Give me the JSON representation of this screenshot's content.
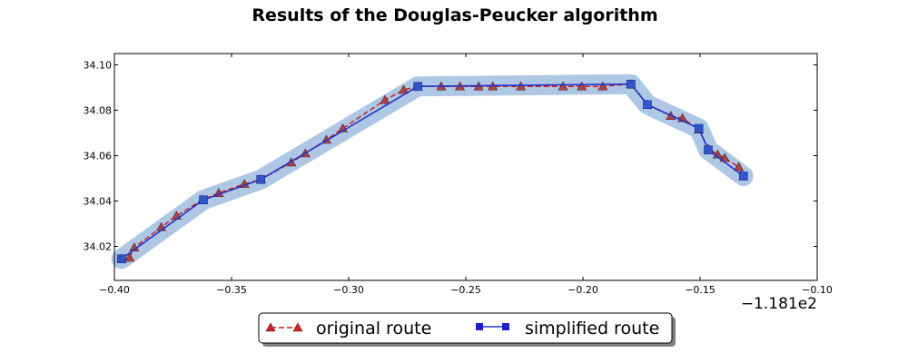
{
  "chart_data": {
    "type": "line",
    "title": "Results of the Douglas-Peucker algorithm",
    "xlabel": "",
    "ylabel": "",
    "x_offset_label": "−1.181e2",
    "xlim": [
      -0.4,
      -0.1
    ],
    "ylim": [
      34.005,
      34.105
    ],
    "x_ticks": [
      -0.4,
      -0.35,
      -0.3,
      -0.25,
      -0.2,
      -0.15,
      -0.1
    ],
    "x_tick_labels": [
      "−0.40",
      "−0.35",
      "−0.30",
      "−0.25",
      "−0.20",
      "−0.15",
      "−0.10"
    ],
    "y_ticks": [
      34.02,
      34.04,
      34.06,
      34.08,
      34.1
    ],
    "y_tick_labels": [
      "34.02",
      "34.04",
      "34.06",
      "34.08",
      "34.10"
    ],
    "grid": false,
    "legend_position": "bottom-center",
    "series": [
      {
        "name": "original route",
        "color": "#cc2222",
        "marker": "triangle",
        "linestyle": "dashed",
        "points": [
          [
            -0.397,
            34.0145
          ],
          [
            -0.3935,
            34.015
          ],
          [
            -0.3915,
            34.0195
          ],
          [
            -0.38,
            34.0285
          ],
          [
            -0.3735,
            34.0335
          ],
          [
            -0.3625,
            34.0405
          ],
          [
            -0.3555,
            34.0435
          ],
          [
            -0.3445,
            34.0475
          ],
          [
            -0.3375,
            34.0495
          ],
          [
            -0.3245,
            34.057
          ],
          [
            -0.3185,
            34.061
          ],
          [
            -0.3095,
            34.067
          ],
          [
            -0.3025,
            34.072
          ],
          [
            -0.2845,
            34.0845
          ],
          [
            -0.2765,
            34.089
          ],
          [
            -0.2705,
            34.0905
          ],
          [
            -0.2605,
            34.0905
          ],
          [
            -0.2525,
            34.0905
          ],
          [
            -0.2445,
            34.0905
          ],
          [
            -0.2385,
            34.0905
          ],
          [
            -0.2265,
            34.0905
          ],
          [
            -0.2085,
            34.0905
          ],
          [
            -0.2005,
            34.0905
          ],
          [
            -0.1915,
            34.0905
          ],
          [
            -0.1795,
            34.0915
          ],
          [
            -0.1725,
            34.0825
          ],
          [
            -0.1625,
            34.0775
          ],
          [
            -0.1575,
            34.0765
          ],
          [
            -0.1505,
            34.0715
          ],
          [
            -0.1465,
            34.063
          ],
          [
            -0.1425,
            34.0605
          ],
          [
            -0.1395,
            34.059
          ],
          [
            -0.1335,
            34.055
          ],
          [
            -0.1315,
            34.051
          ]
        ]
      },
      {
        "name": "simplified route",
        "color": "#2233cc",
        "marker": "square",
        "linestyle": "solid",
        "points": [
          [
            -0.397,
            34.0145
          ],
          [
            -0.362,
            34.0405
          ],
          [
            -0.3375,
            34.0495
          ],
          [
            -0.2705,
            34.0905
          ],
          [
            -0.1795,
            34.0915
          ],
          [
            -0.1725,
            34.0825
          ],
          [
            -0.1505,
            34.072
          ],
          [
            -0.1465,
            34.0625
          ],
          [
            -0.1315,
            34.051
          ]
        ]
      }
    ],
    "buffer_color": "#99b9de"
  }
}
